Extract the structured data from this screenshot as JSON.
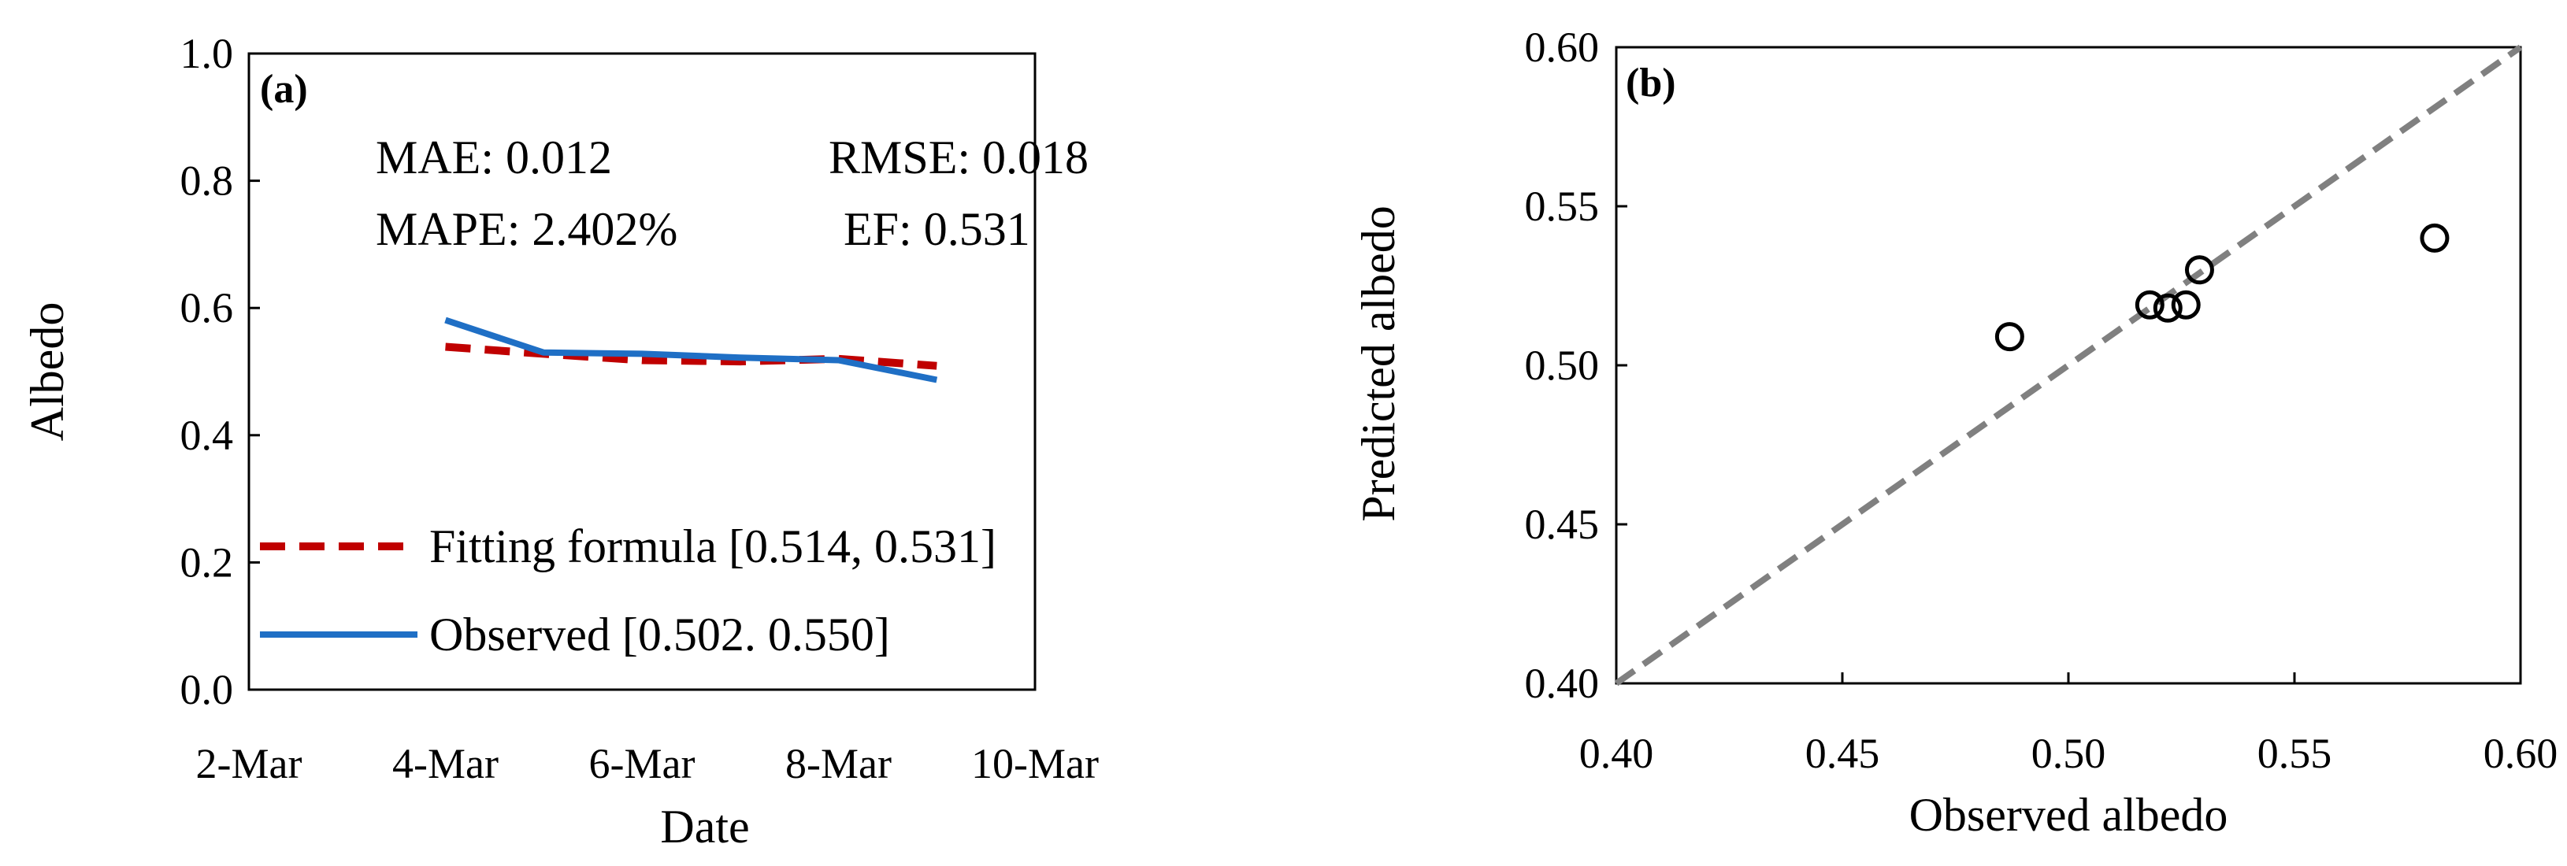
{
  "chart_data": [
    {
      "id": "a",
      "type": "line",
      "panel_label": "(a)",
      "xlabel": "Date",
      "ylabel": "Albedo",
      "x_tick_labels": [
        "2-Mar",
        "4-Mar",
        "6-Mar",
        "8-Mar",
        "10-Mar"
      ],
      "x_tick_values": [
        2,
        4,
        6,
        8,
        10
      ],
      "xlim": [
        2,
        10
      ],
      "y_tick_labels": [
        "0.0",
        "0.2",
        "0.4",
        "0.6",
        "0.8",
        "1.0"
      ],
      "y_tick_values": [
        0,
        0.2,
        0.4,
        0.6,
        0.8,
        1.0
      ],
      "ylim": [
        0,
        1
      ],
      "grid": false,
      "stats": {
        "mae": "MAE: 0.012",
        "rmse": "RMSE: 0.018",
        "mape": "MAPE: 2.402%",
        "ef": "EF: 0.531"
      },
      "series": [
        {
          "name": "Fitting formula [0.514, 0.531]",
          "style": "dashed",
          "color": "#c00000",
          "x": [
            4,
            5,
            6,
            7,
            8,
            9
          ],
          "values": [
            0.539,
            0.528,
            0.518,
            0.516,
            0.52,
            0.509
          ]
        },
        {
          "name": "Observed [0.502. 0.550]",
          "style": "solid",
          "color": "#1f6fc5",
          "x": [
            4,
            5,
            6,
            7,
            8,
            9
          ],
          "values": [
            0.581,
            0.53,
            0.528,
            0.522,
            0.518,
            0.487
          ]
        }
      ],
      "legend_position": "bottom-left"
    },
    {
      "id": "b",
      "type": "scatter",
      "panel_label": "(b)",
      "xlabel": "Observed albedo",
      "ylabel": "Predicted albedo",
      "x_tick_labels": [
        "0.40",
        "0.45",
        "0.50",
        "0.55",
        "0.60"
      ],
      "x_tick_values": [
        0.4,
        0.45,
        0.5,
        0.55,
        0.6
      ],
      "xlim": [
        0.4,
        0.6
      ],
      "y_tick_labels": [
        "0.40",
        "0.45",
        "0.50",
        "0.55",
        "0.60"
      ],
      "y_tick_values": [
        0.4,
        0.45,
        0.5,
        0.55,
        0.6
      ],
      "ylim": [
        0.4,
        0.6
      ],
      "grid": false,
      "reference_line": {
        "style": "dashed",
        "color": "#808080",
        "from": [
          0.4,
          0.4
        ],
        "to": [
          0.6,
          0.6
        ]
      },
      "points": [
        {
          "x": 0.487,
          "y": 0.509
        },
        {
          "x": 0.518,
          "y": 0.519
        },
        {
          "x": 0.522,
          "y": 0.518
        },
        {
          "x": 0.526,
          "y": 0.519
        },
        {
          "x": 0.529,
          "y": 0.53
        },
        {
          "x": 0.581,
          "y": 0.54
        }
      ]
    }
  ]
}
